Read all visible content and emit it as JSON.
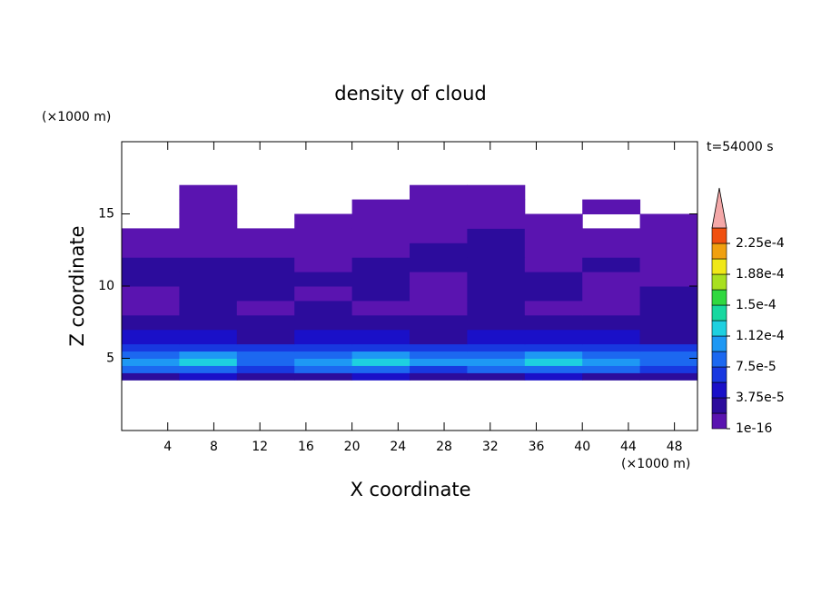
{
  "chart_data": {
    "type": "contour",
    "title": "density of cloud",
    "x_label": "X coordinate",
    "y_label": "Z coordinate",
    "x_unit": "(×1000 m)",
    "y_unit": "(×1000 m)",
    "time_label": "t=54000 s",
    "xlim": [
      0,
      50
    ],
    "ylim": [
      0,
      20
    ],
    "xticks": [
      4,
      8,
      12,
      16,
      20,
      24,
      28,
      32,
      36,
      40,
      44,
      48
    ],
    "yticks": [
      5,
      10,
      15
    ],
    "field": {
      "x_edges": [
        0,
        5,
        10,
        15,
        20,
        25,
        30,
        35,
        40,
        45,
        50
      ],
      "z_edges": [
        3.5,
        4,
        4.5,
        5,
        5.5,
        6,
        7,
        8,
        9,
        10,
        11,
        12,
        13,
        14,
        15,
        16,
        17
      ],
      "values": [
        [
          3e-05,
          4e-05,
          3e-05,
          3e-05,
          4e-05,
          3e-05,
          3e-05,
          4e-05,
          3e-05,
          3e-05
        ],
        [
          8e-05,
          9e-05,
          7e-05,
          8e-05,
          9e-05,
          7e-05,
          8e-05,
          9e-05,
          8e-05,
          7e-05
        ],
        [
          0.00011,
          0.00012,
          9e-05,
          0.00011,
          0.000125,
          0.0001,
          0.00011,
          0.00012,
          0.0001,
          9e-05
        ],
        [
          9e-05,
          0.000105,
          8e-05,
          9e-05,
          0.00011,
          9e-05,
          9e-05,
          0.00011,
          9e-05,
          8e-05
        ],
        [
          6e-05,
          7e-05,
          6e-05,
          6e-05,
          7e-05,
          6e-05,
          6e-05,
          7e-05,
          6e-05,
          6e-05
        ],
        [
          4e-05,
          4e-05,
          3e-05,
          4e-05,
          4e-05,
          3e-05,
          4e-05,
          4e-05,
          4e-05,
          3e-05
        ],
        [
          2.5e-05,
          2e-05,
          2e-05,
          2.5e-05,
          2e-05,
          2e-05,
          2.5e-05,
          2e-05,
          2e-05,
          2.5e-05
        ],
        [
          1e-05,
          2e-05,
          1e-05,
          2e-05,
          1e-05,
          1e-05,
          2e-05,
          1e-05,
          1e-05,
          2e-05
        ],
        [
          1e-05,
          2e-05,
          2e-05,
          1e-05,
          2e-05,
          1e-05,
          2e-05,
          2e-05,
          1e-05,
          2e-05
        ],
        [
          2e-05,
          2e-05,
          2.5e-05,
          2e-05,
          2e-05,
          1e-05,
          2e-05,
          2e-05,
          1e-05,
          1e-05
        ],
        [
          2e-05,
          2e-05,
          2e-05,
          1e-05,
          2e-05,
          2e-05,
          2e-05,
          1e-05,
          2e-05,
          1e-05
        ],
        [
          1e-05,
          1e-05,
          1e-05,
          1e-05,
          1e-05,
          2e-05,
          2e-05,
          1e-05,
          1e-05,
          1e-05
        ],
        [
          1e-05,
          1e-05,
          1e-05,
          1e-05,
          1e-05,
          1e-05,
          2e-05,
          1e-05,
          1e-05,
          1e-05
        ],
        [
          null,
          1e-05,
          null,
          1e-05,
          1e-05,
          1e-05,
          1e-05,
          1e-05,
          null,
          1e-05
        ],
        [
          null,
          1e-05,
          null,
          null,
          1e-05,
          1e-05,
          1e-05,
          null,
          1e-05,
          null
        ],
        [
          null,
          1e-05,
          null,
          null,
          null,
          1e-05,
          1e-05,
          null,
          null,
          null
        ]
      ]
    },
    "levels": [
      1e-16,
      1.875e-05,
      3.75e-05,
      5.625e-05,
      7.5e-05,
      9.375e-05,
      0.0001125,
      0.00013125,
      0.00015,
      0.00016875,
      0.0001875,
      0.00020625,
      0.000225,
      0.00024375
    ],
    "level_colors": [
      "#5a14b0",
      "#2c0c9c",
      "#1a10c8",
      "#1838e0",
      "#1c68f0",
      "#1e98f4",
      "#1ed0e0",
      "#18d8a0",
      "#30d840",
      "#a8e020",
      "#f0e818",
      "#f0a010",
      "#f05010"
    ],
    "extend_color": "#f4a8a8",
    "colorbar_ticks": [
      {
        "value": 1e-16,
        "label": "1e-16"
      },
      {
        "value": 3.75e-05,
        "label": "3.75e-5"
      },
      {
        "value": 7.5e-05,
        "label": "7.5e-5"
      },
      {
        "value": 0.0001125,
        "label": "1.12e-4"
      },
      {
        "value": 0.00015,
        "label": "1.5e-4"
      },
      {
        "value": 0.0001875,
        "label": "1.88e-4"
      },
      {
        "value": 0.000225,
        "label": "2.25e-4"
      }
    ]
  }
}
